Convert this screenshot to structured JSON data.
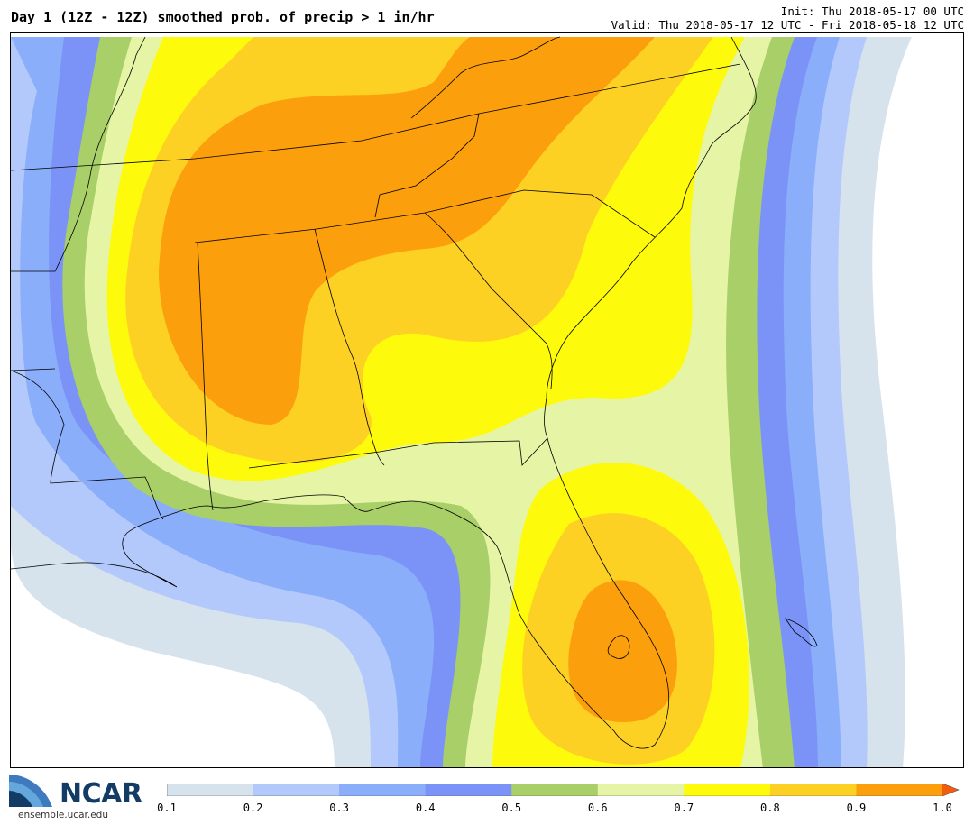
{
  "header": {
    "title": "Day 1 (12Z - 12Z) smoothed prob. of precip > 1 in/hr",
    "init": "Init: Thu 2018-05-17 00 UTC",
    "valid": "Valid: Thu 2018-05-17 12 UTC - Fri 2018-05-18 12 UTC"
  },
  "logo": {
    "word": "NCAR",
    "url": "ensemble.ucar.edu",
    "icon": "ncar-globe-logo"
  },
  "colorbar": {
    "ticks": [
      "0.1",
      "0.2",
      "0.3",
      "0.4",
      "0.5",
      "0.6",
      "0.7",
      "0.8",
      "0.9",
      "1.0"
    ],
    "colors": [
      "#d6e2ec",
      "#b3c9fb",
      "#8aaefa",
      "#7b93f6",
      "#a9cf68",
      "#e6f4a5",
      "#fefa0c",
      "#fdd124",
      "#fc9f0c",
      "#f65a0b"
    ]
  },
  "map": {
    "field": "probability",
    "region": "southeastern United States",
    "colors": {
      "p10": "#d6e2ec",
      "p20": "#b3c9fb",
      "p30": "#8aaefa",
      "p40": "#7b93f6",
      "p50": "#a9cf68",
      "p60": "#e6f4a5",
      "p70": "#fefa0c",
      "p80": "#fdd124",
      "p90": "#fc9f0c",
      "border": "#000000",
      "background": "#ffffff"
    }
  }
}
